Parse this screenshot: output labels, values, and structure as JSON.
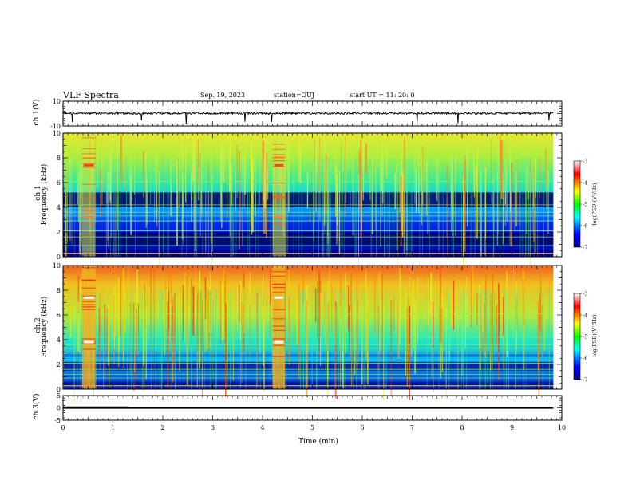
{
  "header": {
    "title": "VLF Spectra",
    "date": "Sep. 19, 2023",
    "station": "station=OUJ",
    "start": "start UT =  11: 20: 0"
  },
  "chart_data": [
    {
      "type": "line",
      "panel": "ch1-waveform",
      "ylabel": "ch.1(V)",
      "ylim": [
        -10,
        10
      ],
      "yticks": [
        "10",
        "-10"
      ],
      "description_values": {
        "baseline": 0
      }
    },
    {
      "type": "heatmap",
      "panel": "ch1-spectrogram",
      "ylabel": "ch.1\nFrequency (kHz)",
      "ylabel_line1": "ch.1",
      "ylabel_line2": "Frequency (kHz)",
      "ylim": [
        0,
        10
      ],
      "yticks": [
        "0",
        "2",
        "4",
        "6",
        "8",
        "10"
      ],
      "colorbar": {
        "label": "log(PSD)(V²/Hz)",
        "range": [
          -7,
          -3
        ],
        "ticks": [
          "-3",
          "-4",
          "-5",
          "-6",
          "-7"
        ]
      }
    },
    {
      "type": "heatmap",
      "panel": "ch2-spectrogram",
      "ylabel_line1": "ch.2",
      "ylabel_line2": "Frequency (kHz)",
      "ylim": [
        0,
        10
      ],
      "yticks": [
        "0",
        "2",
        "4",
        "6",
        "8",
        "10"
      ],
      "colorbar": {
        "label": "log(PSD)(V²/Hz)",
        "range": [
          -7,
          -3
        ],
        "ticks": [
          "-3",
          "-4",
          "-5",
          "-6",
          "-7"
        ]
      }
    },
    {
      "type": "line",
      "panel": "ch3-waveform",
      "ylabel": "ch.3(V)",
      "ylim": [
        -5,
        5
      ],
      "yticks": [
        "5",
        "0",
        "-5"
      ],
      "xlabel": "Time (min)",
      "xlim": [
        0,
        10
      ],
      "xticks": [
        "0",
        "1",
        "2",
        "3",
        "4",
        "5",
        "6",
        "7",
        "8",
        "9",
        "10"
      ],
      "step": {
        "high_until": 1.3,
        "high_level": 0.3,
        "low_level": -0.1
      }
    }
  ]
}
